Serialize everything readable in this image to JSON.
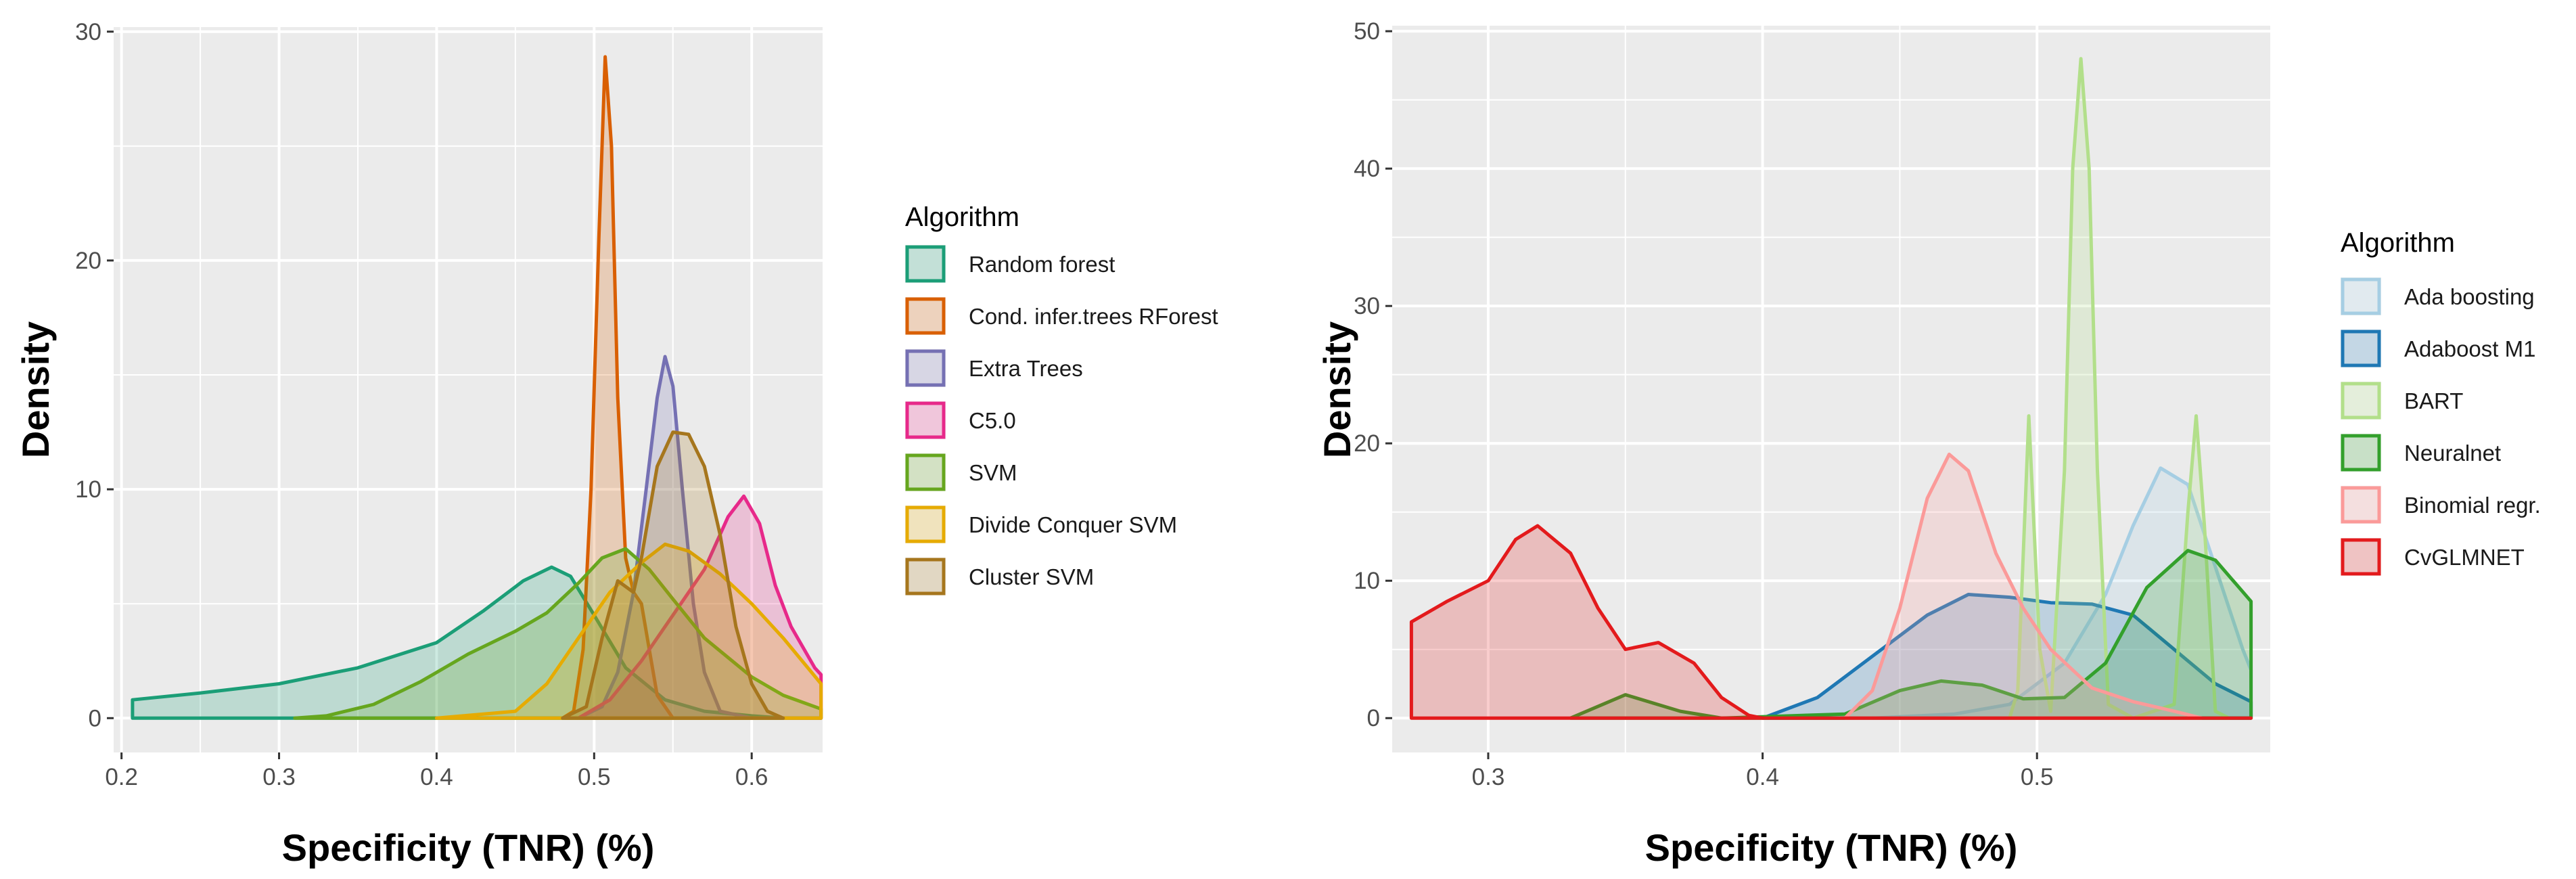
{
  "chart_data": [
    {
      "type": "area",
      "title": "",
      "xlabel": "Specificity (TNR) (%)",
      "ylabel": "Density",
      "xlim": [
        0.195,
        0.645
      ],
      "ylim": [
        -1.5,
        30.2
      ],
      "xticks": [
        0.2,
        0.3,
        0.4,
        0.5,
        0.6
      ],
      "yticks": [
        0,
        10,
        20,
        30
      ],
      "xtick_labels": [
        "0.2",
        "0.3",
        "0.4",
        "0.5",
        "0.6"
      ],
      "ytick_labels": [
        "0",
        "10",
        "20",
        "30"
      ],
      "grid": true,
      "legend": {
        "title": "Algorithm",
        "placement": "right"
      },
      "series": [
        {
          "name": "Random forest",
          "color": "#1b9e77",
          "points": [
            [
              0.207,
              0
            ],
            [
              0.207,
              0.8
            ],
            [
              0.25,
              1.1
            ],
            [
              0.3,
              1.5
            ],
            [
              0.35,
              2.2
            ],
            [
              0.4,
              3.3
            ],
            [
              0.43,
              4.7
            ],
            [
              0.455,
              6
            ],
            [
              0.473,
              6.6
            ],
            [
              0.485,
              6.2
            ],
            [
              0.5,
              4.5
            ],
            [
              0.52,
              2.2
            ],
            [
              0.545,
              0.8
            ],
            [
              0.57,
              0.3
            ],
            [
              0.6,
              0.1
            ],
            [
              0.62,
              0
            ]
          ]
        },
        {
          "name": "Cond. infer.trees RForest",
          "color": "#d95f02",
          "points": [
            [
              0.48,
              0
            ],
            [
              0.487,
              0.3
            ],
            [
              0.493,
              3
            ],
            [
              0.498,
              10
            ],
            [
              0.503,
              21
            ],
            [
              0.507,
              28.9
            ],
            [
              0.511,
              25
            ],
            [
              0.515,
              14
            ],
            [
              0.52,
              7
            ],
            [
              0.525,
              5.5
            ],
            [
              0.53,
              5
            ],
            [
              0.535,
              3
            ],
            [
              0.54,
              1
            ],
            [
              0.55,
              0
            ]
          ]
        },
        {
          "name": "Extra Trees",
          "color": "#7570b3",
          "points": [
            [
              0.49,
              0
            ],
            [
              0.505,
              0.5
            ],
            [
              0.515,
              2
            ],
            [
              0.525,
              5.5
            ],
            [
              0.533,
              10
            ],
            [
              0.54,
              14
            ],
            [
              0.545,
              15.8
            ],
            [
              0.55,
              14.5
            ],
            [
              0.556,
              10
            ],
            [
              0.563,
              5
            ],
            [
              0.57,
              2
            ],
            [
              0.58,
              0.3
            ],
            [
              0.6,
              0
            ]
          ]
        },
        {
          "name": "C5.0",
          "color": "#e7298a",
          "points": [
            [
              0.49,
              0
            ],
            [
              0.51,
              0.8
            ],
            [
              0.53,
              2.5
            ],
            [
              0.55,
              4.5
            ],
            [
              0.57,
              6.5
            ],
            [
              0.585,
              8.8
            ],
            [
              0.595,
              9.7
            ],
            [
              0.605,
              8.5
            ],
            [
              0.615,
              5.8
            ],
            [
              0.625,
              4
            ],
            [
              0.64,
              2.2
            ],
            [
              0.644,
              1.9
            ],
            [
              0.644,
              0
            ]
          ]
        },
        {
          "name": "SVM",
          "color": "#66a61e",
          "points": [
            [
              0.31,
              0
            ],
            [
              0.33,
              0.1
            ],
            [
              0.36,
              0.6
            ],
            [
              0.39,
              1.6
            ],
            [
              0.42,
              2.8
            ],
            [
              0.45,
              3.8
            ],
            [
              0.47,
              4.6
            ],
            [
              0.49,
              5.9
            ],
            [
              0.505,
              7
            ],
            [
              0.52,
              7.4
            ],
            [
              0.535,
              6.5
            ],
            [
              0.55,
              5.2
            ],
            [
              0.57,
              3.5
            ],
            [
              0.6,
              1.8
            ],
            [
              0.62,
              1
            ],
            [
              0.644,
              0.4
            ],
            [
              0.644,
              0
            ]
          ]
        },
        {
          "name": "Divide Conquer SVM",
          "color": "#e6ab02",
          "points": [
            [
              0.4,
              0
            ],
            [
              0.45,
              0.3
            ],
            [
              0.47,
              1.5
            ],
            [
              0.49,
              3.5
            ],
            [
              0.51,
              5.5
            ],
            [
              0.53,
              6.8
            ],
            [
              0.545,
              7.6
            ],
            [
              0.56,
              7.3
            ],
            [
              0.58,
              6.3
            ],
            [
              0.6,
              5
            ],
            [
              0.62,
              3.5
            ],
            [
              0.644,
              1.5
            ],
            [
              0.644,
              0
            ]
          ]
        },
        {
          "name": "Cluster SVM",
          "color": "#a6761d",
          "points": [
            [
              0.48,
              0
            ],
            [
              0.495,
              0.5
            ],
            [
              0.505,
              3.5
            ],
            [
              0.515,
              6
            ],
            [
              0.525,
              5.5
            ],
            [
              0.53,
              7
            ],
            [
              0.54,
              11
            ],
            [
              0.55,
              12.5
            ],
            [
              0.56,
              12.4
            ],
            [
              0.57,
              11
            ],
            [
              0.58,
              8
            ],
            [
              0.59,
              4
            ],
            [
              0.6,
              1.5
            ],
            [
              0.61,
              0.3
            ],
            [
              0.62,
              0
            ]
          ]
        }
      ]
    },
    {
      "type": "area",
      "title": "",
      "xlabel": "Specificity (TNR) (%)",
      "ylabel": "Density",
      "xlim": [
        0.265,
        0.585
      ],
      "ylim": [
        -2.5,
        50.4
      ],
      "xticks": [
        0.3,
        0.4,
        0.5
      ],
      "yticks": [
        0,
        10,
        20,
        30,
        40,
        50
      ],
      "xtick_labels": [
        "0.3",
        "0.4",
        "0.5"
      ],
      "ytick_labels": [
        "0",
        "10",
        "20",
        "30",
        "40",
        "50"
      ],
      "grid": true,
      "legend": {
        "title": "Algorithm",
        "placement": "right"
      },
      "series": [
        {
          "name": "Ada boosting",
          "color": "#a6cee3",
          "points": [
            [
              0.44,
              0
            ],
            [
              0.47,
              0.3
            ],
            [
              0.49,
              1
            ],
            [
              0.51,
              4
            ],
            [
              0.525,
              9
            ],
            [
              0.535,
              14
            ],
            [
              0.545,
              18.2
            ],
            [
              0.555,
              17
            ],
            [
              0.565,
              11
            ],
            [
              0.575,
              5
            ],
            [
              0.578,
              3.5
            ],
            [
              0.578,
              0
            ]
          ]
        },
        {
          "name": "Adaboost M1",
          "color": "#1f78b4",
          "points": [
            [
              0.4,
              0
            ],
            [
              0.42,
              1.5
            ],
            [
              0.44,
              4.5
            ],
            [
              0.46,
              7.5
            ],
            [
              0.475,
              9
            ],
            [
              0.49,
              8.8
            ],
            [
              0.505,
              8.4
            ],
            [
              0.52,
              8.3
            ],
            [
              0.535,
              7.5
            ],
            [
              0.55,
              5
            ],
            [
              0.565,
              2.5
            ],
            [
              0.578,
              1.2
            ],
            [
              0.578,
              0
            ]
          ]
        },
        {
          "name": "BART",
          "color": "#b2df8a",
          "points": [
            [
              0.49,
              0
            ],
            [
              0.493,
              2
            ],
            [
              0.497,
              22
            ],
            [
              0.501,
              5
            ],
            [
              0.505,
              0.5
            ],
            [
              0.51,
              18
            ],
            [
              0.513,
              40
            ],
            [
              0.516,
              48
            ],
            [
              0.519,
              40
            ],
            [
              0.522,
              18
            ],
            [
              0.526,
              1
            ],
            [
              0.535,
              0
            ],
            [
              0.55,
              1
            ],
            [
              0.555,
              15
            ],
            [
              0.558,
              22
            ],
            [
              0.561,
              14
            ],
            [
              0.565,
              0.5
            ],
            [
              0.57,
              0
            ]
          ]
        },
        {
          "name": "Neuralnet",
          "color": "#33a02c",
          "points": [
            [
              0.33,
              0
            ],
            [
              0.35,
              1.7
            ],
            [
              0.37,
              0.5
            ],
            [
              0.385,
              0
            ],
            [
              0.43,
              0.3
            ],
            [
              0.45,
              2
            ],
            [
              0.465,
              2.7
            ],
            [
              0.48,
              2.4
            ],
            [
              0.495,
              1.4
            ],
            [
              0.51,
              1.5
            ],
            [
              0.525,
              4
            ],
            [
              0.54,
              9.5
            ],
            [
              0.555,
              12.2
            ],
            [
              0.565,
              11.5
            ],
            [
              0.578,
              8.5
            ],
            [
              0.578,
              0
            ]
          ]
        },
        {
          "name": "Binomial regr.",
          "color": "#fb9a99",
          "points": [
            [
              0.43,
              0
            ],
            [
              0.44,
              2
            ],
            [
              0.45,
              8
            ],
            [
              0.46,
              16
            ],
            [
              0.468,
              19.2
            ],
            [
              0.475,
              18
            ],
            [
              0.485,
              12
            ],
            [
              0.495,
              8
            ],
            [
              0.505,
              5
            ],
            [
              0.52,
              2.2
            ],
            [
              0.535,
              1.2
            ],
            [
              0.55,
              0.5
            ],
            [
              0.56,
              0
            ]
          ]
        },
        {
          "name": "CvGLMNET",
          "color": "#e31a1c",
          "points": [
            [
              0.272,
              0
            ],
            [
              0.272,
              7
            ],
            [
              0.285,
              8.5
            ],
            [
              0.3,
              10
            ],
            [
              0.31,
              13
            ],
            [
              0.318,
              14
            ],
            [
              0.33,
              12
            ],
            [
              0.34,
              8
            ],
            [
              0.35,
              5
            ],
            [
              0.362,
              5.5
            ],
            [
              0.375,
              4
            ],
            [
              0.385,
              1.5
            ],
            [
              0.395,
              0.2
            ],
            [
              0.4,
              0
            ],
            [
              0.578,
              0
            ]
          ]
        }
      ]
    }
  ]
}
